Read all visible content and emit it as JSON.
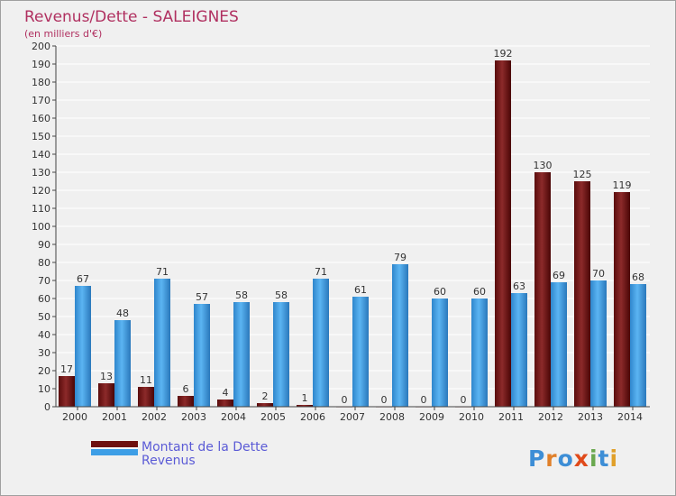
{
  "chart_data": {
    "type": "bar",
    "title": "Revenus/Dette - SALEIGNES",
    "subtitle": "(en milliers d'€)",
    "categories": [
      "2000",
      "2001",
      "2002",
      "2003",
      "2004",
      "2005",
      "2006",
      "2007",
      "2008",
      "2009",
      "2010",
      "2011",
      "2012",
      "2013",
      "2014"
    ],
    "series": [
      {
        "name": "Montant de la Dette",
        "values": [
          17,
          13,
          11,
          6,
          4,
          2,
          1,
          0,
          0,
          0,
          0,
          192,
          130,
          125,
          119
        ]
      },
      {
        "name": "Revenus",
        "values": [
          67,
          48,
          71,
          57,
          58,
          58,
          71,
          61,
          79,
          60,
          60,
          63,
          69,
          70,
          68
        ]
      }
    ],
    "ylim": [
      0,
      200
    ],
    "ytick_step": 10,
    "grid": true
  },
  "colors": {
    "dette": "#7a1a1a",
    "revenus": "#3d9ee6",
    "title": "#b03060",
    "legend_text": "#5b5bd6"
  },
  "brand": {
    "logo": "Proxiti"
  }
}
